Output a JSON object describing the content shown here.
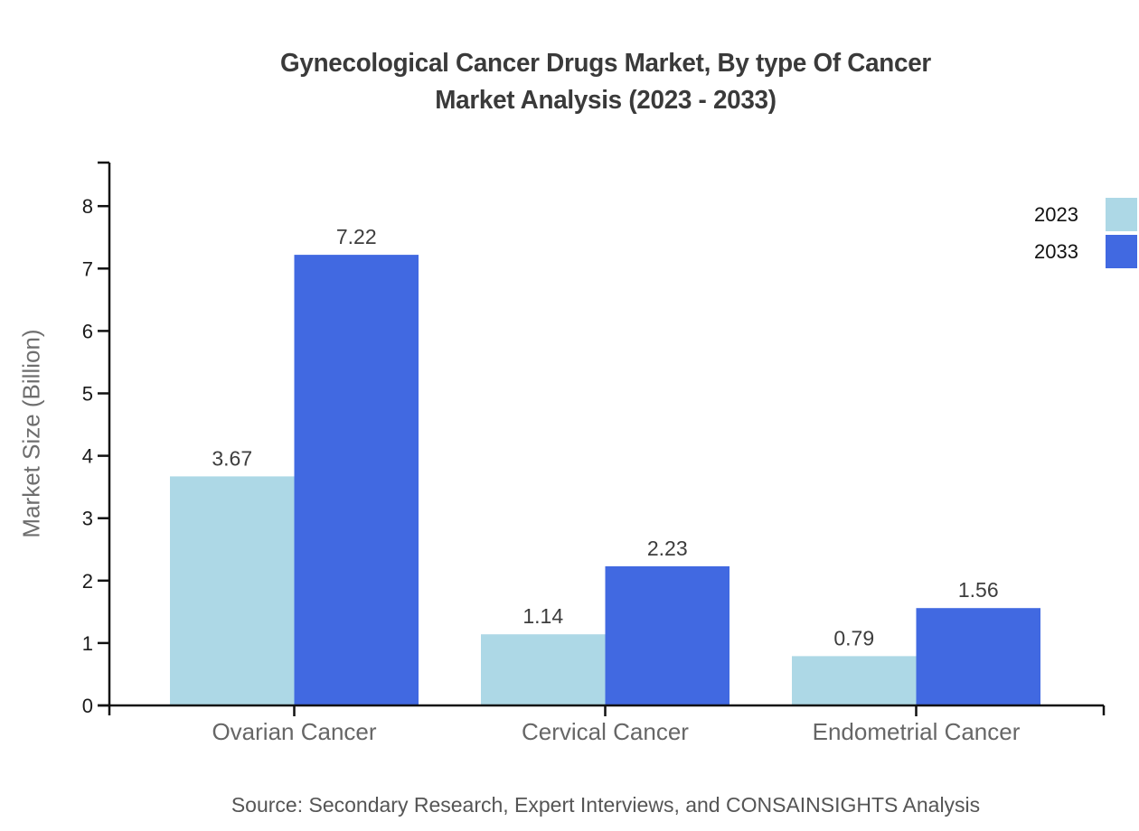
{
  "chart_data": {
    "type": "bar",
    "title_line1": "Gynecological Cancer Drugs Market, By type Of Cancer",
    "title_line2": "Market Analysis (2023 - 2033)",
    "ylabel": "Market Size (Billion)",
    "categories": [
      "Ovarian Cancer",
      "Cervical Cancer",
      "Endometrial Cancer"
    ],
    "series": [
      {
        "name": "2023",
        "color": "#add8e6",
        "values": [
          3.67,
          1.14,
          0.79
        ]
      },
      {
        "name": "2033",
        "color": "#4169e1",
        "values": [
          7.22,
          2.23,
          1.56
        ]
      }
    ],
    "value_labels": [
      "3.67",
      "7.22",
      "1.14",
      "2.23",
      "0.79",
      "1.56"
    ],
    "yticks": [
      0,
      1,
      2,
      3,
      4,
      5,
      6,
      7,
      8
    ],
    "ylim": [
      0,
      8.7
    ],
    "grid": false,
    "legend_position": "top-right",
    "legend_entries": [
      "2023",
      "2033"
    ]
  },
  "source_note": "Source: Secondary Research, Expert Interviews, and CONSAINSIGHTS Analysis",
  "colors": {
    "background": "#ffffff",
    "axis": "#111111",
    "tick_label": "#1a1a1a",
    "category_label": "#666666",
    "value_label": "#3d3d3d",
    "title": "#3a3a3a",
    "axis_title": "#6e6e6e",
    "source": "#555555",
    "series_2023": "#add8e6",
    "series_2033": "#4169e1"
  }
}
